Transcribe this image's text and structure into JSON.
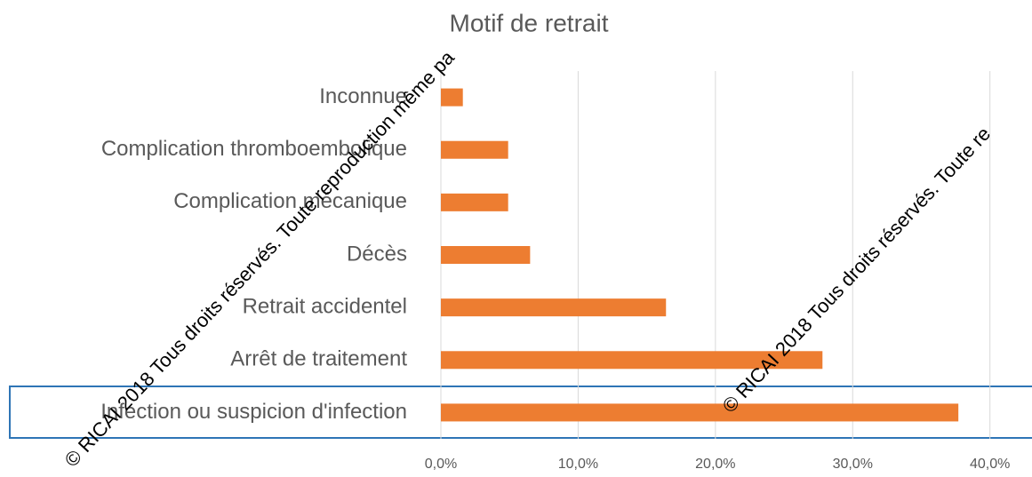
{
  "chart_data": {
    "type": "barh",
    "title": "Motif de retrait",
    "categories": [
      "Inconnue",
      "Complication thromboembolique",
      "Complication mécanique",
      "Décès",
      "Retrait accidentel",
      "Arrêt de traitement",
      "Infection ou suspicion d'infection"
    ],
    "values": [
      1.6,
      4.9,
      4.9,
      6.5,
      16.4,
      27.8,
      37.7
    ],
    "color": "#ed7d31",
    "xlim": [
      0,
      43
    ],
    "xticks": [
      {
        "value": 0,
        "label": "0,0%"
      },
      {
        "value": 10,
        "label": "10,0%"
      },
      {
        "value": 20,
        "label": "20,0%"
      },
      {
        "value": 30,
        "label": "30,0%"
      },
      {
        "value": 40,
        "label": "40,0%"
      }
    ],
    "grid": true,
    "annotations": [
      "© RICAI 2018 Tous droits réservés. Toute reproduction même pa",
      "© RICAI 2018 Tous droits réservés. Toute re"
    ]
  }
}
